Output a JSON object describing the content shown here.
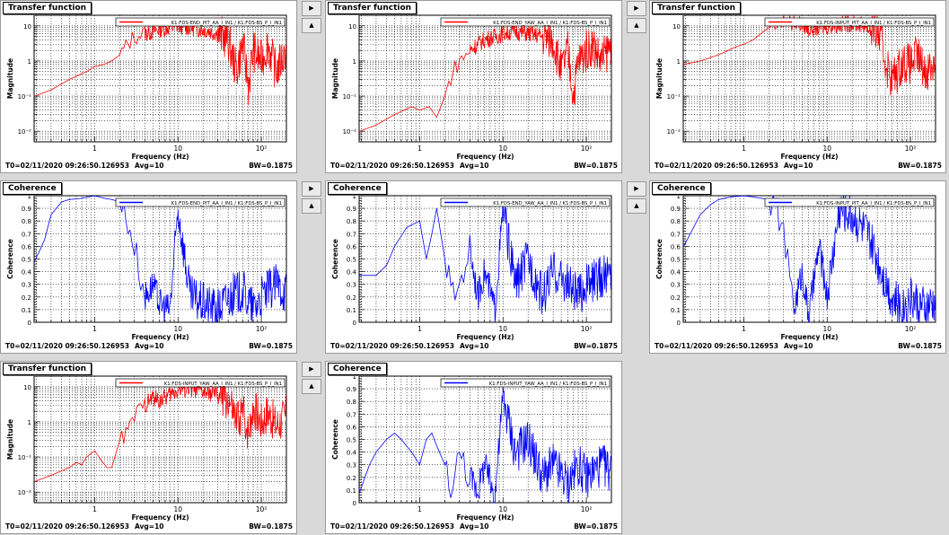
{
  "panels": [
    {
      "type": "tf",
      "title": "Transfer function",
      "legend": "K1:FDS-END_PIT_AA_I_IN1 / K1:FDS-BS_P_I_IN1",
      "color": "#ff0000",
      "ylabel": "Magnitude",
      "xlabel": "Frequency (Hz)",
      "footer": [
        "T0=02/11/2020 09:26:50.126953",
        "Avg=10",
        "BW=0.1875"
      ]
    },
    {
      "type": "tf",
      "title": "Transfer function",
      "legend": "K1:FDS-END_YAW_AA_I_IN1 / K1:FDS-BS_P_I_IN1",
      "color": "#ff0000",
      "ylabel": "Magnitude",
      "xlabel": "Frequency (Hz)",
      "footer": [
        "T0=02/11/2020 09:26:50.126953",
        "Avg=10",
        "BW=0.1875"
      ]
    },
    {
      "type": "tf",
      "title": "Transfer function",
      "legend": "K1:FDS-INPUT_PIT_AA_I_IN1 / K1:FDS-BS_P_I_IN1",
      "color": "#ff0000",
      "ylabel": "Magnitude",
      "xlabel": "Frequency (Hz)",
      "footer": [
        "T0=02/11/2020 09:26:50.126953",
        "Avg=10",
        "BW=0.1875"
      ]
    },
    {
      "type": "coh",
      "title": "Coherence",
      "legend": "K1:FDS-END_PIT_AA_I_IN1 / K1:FDS-BS_P_I_IN1",
      "color": "#0000ff",
      "ylabel": "Coherence",
      "xlabel": "Frequency (Hz)",
      "footer": [
        "T0=02/11/2020 09:26:50.126953",
        "Avg=10",
        "BW=0.1875"
      ]
    },
    {
      "type": "coh",
      "title": "Coherence",
      "legend": "K1:FDS-END_YAW_AA_I_IN1 / K1:FDS-BS_P_I_IN1",
      "color": "#0000ff",
      "ylabel": "Coherence",
      "xlabel": "Frequency (Hz)",
      "footer": [
        "T0=02/11/2020 09:26:50.126953",
        "Avg=10",
        "BW=0.1875"
      ]
    },
    {
      "type": "coh",
      "title": "Coherence",
      "legend": "K1:FDS-INPUT_PIT_AA_I_IN1 / K1:FDS-BS_P_I_IN1",
      "color": "#0000ff",
      "ylabel": "Coherence",
      "xlabel": "Frequency (Hz)",
      "footer": [
        "T0=02/11/2020 09:26:50.126953",
        "Avg=10",
        "BW=0.1875"
      ]
    },
    {
      "type": "tf",
      "title": "Transfer function",
      "legend": "K1:FDS-INPUT_YAW_AA_I_IN1 / K1:FDS-BS_P_I_IN1",
      "color": "#ff0000",
      "ylabel": "Magnitude",
      "xlabel": "Frequency (Hz)",
      "footer": [
        "T0=02/11/2020 09:26:50.126953",
        "Avg=10",
        "BW=0.1875"
      ]
    },
    {
      "type": "coh",
      "title": "Coherence",
      "legend": "K1:FDS-INPUT_YAW_AA_I_IN1 / K1:FDS-BS_P_I_IN1",
      "color": "#0000ff",
      "ylabel": "Coherence",
      "xlabel": "Frequency (Hz)",
      "footer": [
        "T0=02/11/2020 09:26:50.126953",
        "Avg=10",
        "BW=0.1875"
      ]
    }
  ],
  "controls": {
    "next_icon": "play-right-icon",
    "prev_icon": "triangle-up-icon"
  },
  "chart_data": [
    {
      "type": "line",
      "title": "Transfer function",
      "xlabel": "Frequency (Hz)",
      "ylabel": "Magnitude",
      "xscale": "log",
      "yscale": "log",
      "xlim": [
        0.1875,
        200
      ],
      "ylim": [
        0.005,
        20
      ],
      "xticks": [
        "1",
        "10",
        "10²"
      ],
      "yticks": [
        "10⁻²",
        "10⁻¹",
        "1",
        "10"
      ],
      "series": [
        {
          "name": "K1:FDS-END_PIT_AA_I_IN1 / K1:FDS-BS_P_I_IN1",
          "x": [
            0.19,
            0.3,
            0.5,
            0.8,
            1.0,
            1.3,
            1.6,
            2,
            2.5,
            3,
            4,
            5,
            6,
            8,
            10,
            14,
            20,
            30,
            40,
            50,
            60,
            70,
            80,
            100,
            120,
            150,
            200
          ],
          "y": [
            0.1,
            0.15,
            0.3,
            0.5,
            0.7,
            0.8,
            1.0,
            1.5,
            3,
            5,
            6,
            7,
            8,
            9,
            10,
            9,
            8,
            6,
            4,
            0.5,
            3,
            0.2,
            2,
            1,
            3,
            0.5,
            2
          ]
        }
      ]
    },
    {
      "type": "line",
      "title": "Transfer function",
      "xlabel": "Frequency (Hz)",
      "ylabel": "Magnitude",
      "xscale": "log",
      "yscale": "log",
      "xlim": [
        0.1875,
        200
      ],
      "ylim": [
        0.005,
        20
      ],
      "xticks": [
        "1",
        "10",
        "10²"
      ],
      "yticks": [
        "10⁻²",
        "10⁻¹",
        "1",
        "10"
      ],
      "series": [
        {
          "name": "K1:FDS-END_YAW_AA_I_IN1 / K1:FDS-BS_P_I_IN1",
          "x": [
            0.19,
            0.3,
            0.5,
            0.8,
            1.0,
            1.3,
            1.6,
            2,
            2.5,
            3,
            4,
            5,
            6,
            8,
            10,
            14,
            20,
            30,
            40,
            50,
            60,
            70,
            80,
            100,
            120,
            150,
            200
          ],
          "y": [
            0.01,
            0.015,
            0.03,
            0.05,
            0.04,
            0.05,
            0.025,
            0.1,
            0.5,
            1,
            2,
            3,
            4,
            5,
            6,
            7,
            6,
            5,
            4,
            0.5,
            2,
            0.1,
            1,
            2,
            3,
            1,
            3
          ]
        }
      ]
    },
    {
      "type": "line",
      "title": "Transfer function",
      "xlabel": "Frequency (Hz)",
      "ylabel": "Magnitude",
      "xscale": "log",
      "yscale": "log",
      "xlim": [
        0.1875,
        200
      ],
      "ylim": [
        0.005,
        20
      ],
      "xticks": [
        "1",
        "10",
        "10²"
      ],
      "yticks": [
        "10⁻²",
        "10⁻¹",
        "1",
        "10"
      ],
      "series": [
        {
          "name": "K1:FDS-INPUT_PIT_AA_I_IN1 / K1:FDS-BS_P_I_IN1",
          "x": [
            0.19,
            0.3,
            0.5,
            0.8,
            1.0,
            1.3,
            1.6,
            2,
            2.5,
            3,
            4,
            5,
            6,
            8,
            10,
            14,
            20,
            30,
            40,
            50,
            60,
            70,
            80,
            100,
            120,
            150,
            200
          ],
          "y": [
            0.8,
            1.0,
            1.5,
            2.5,
            3,
            4,
            6,
            9,
            12,
            14,
            13,
            11,
            8,
            9,
            10,
            11,
            12,
            10,
            8,
            1,
            0.3,
            0.5,
            1,
            0.8,
            1.5,
            0.5,
            1
          ]
        }
      ]
    },
    {
      "type": "line",
      "title": "Coherence",
      "xlabel": "Frequency (Hz)",
      "ylabel": "Coherence",
      "xscale": "log",
      "xlim": [
        0.1875,
        200
      ],
      "ylim": [
        0,
        1
      ],
      "xticks": [
        "1",
        "10",
        "10²"
      ],
      "yticks": [
        "0",
        "0.1",
        "0.2",
        "0.3",
        "0.4",
        "0.5",
        "0.6",
        "0.7",
        "0.8",
        "0.9",
        "1"
      ],
      "series": [
        {
          "name": "K1:FDS-END_PIT_AA_I_IN1 / K1:FDS-BS_P_I_IN1",
          "x": [
            0.19,
            0.25,
            0.3,
            0.4,
            0.5,
            0.7,
            1.0,
            1.3,
            1.6,
            2,
            2.5,
            3,
            4,
            5,
            6,
            8,
            10,
            14,
            20,
            30,
            40,
            60,
            80,
            100,
            150,
            200
          ],
          "y": [
            0.48,
            0.65,
            0.85,
            0.95,
            0.97,
            0.98,
            1.0,
            0.98,
            0.97,
            0.95,
            0.8,
            0.6,
            0.2,
            0.3,
            0.15,
            0.1,
            0.9,
            0.2,
            0.15,
            0.1,
            0.2,
            0.25,
            0.1,
            0.2,
            0.3,
            0.25
          ]
        }
      ]
    },
    {
      "type": "line",
      "title": "Coherence",
      "xlabel": "Frequency (Hz)",
      "ylabel": "Coherence",
      "xscale": "log",
      "xlim": [
        0.1875,
        200
      ],
      "ylim": [
        0,
        1
      ],
      "xticks": [
        "1",
        "10",
        "10²"
      ],
      "yticks": [
        "0",
        "0.1",
        "0.2",
        "0.3",
        "0.4",
        "0.5",
        "0.6",
        "0.7",
        "0.8",
        "0.9",
        "1"
      ],
      "series": [
        {
          "name": "K1:FDS-END_YAW_AA_I_IN1 / K1:FDS-BS_P_I_IN1",
          "x": [
            0.19,
            0.25,
            0.3,
            0.4,
            0.5,
            0.7,
            1.0,
            1.2,
            1.4,
            1.6,
            2,
            2.5,
            3,
            4,
            5,
            6,
            8,
            10,
            14,
            20,
            30,
            40,
            60,
            80,
            100,
            150,
            200
          ],
          "y": [
            0.37,
            0.37,
            0.37,
            0.45,
            0.6,
            0.75,
            0.8,
            0.5,
            0.7,
            0.9,
            0.5,
            0.2,
            0.3,
            0.6,
            0.2,
            0.4,
            0.1,
            0.9,
            0.3,
            0.5,
            0.2,
            0.4,
            0.3,
            0.2,
            0.3,
            0.35,
            0.4
          ]
        }
      ]
    },
    {
      "type": "line",
      "title": "Coherence",
      "xlabel": "Frequency (Hz)",
      "ylabel": "Coherence",
      "xscale": "log",
      "xlim": [
        0.1875,
        200
      ],
      "ylim": [
        0,
        1
      ],
      "xticks": [
        "1",
        "10",
        "10²"
      ],
      "yticks": [
        "0",
        "0.1",
        "0.2",
        "0.3",
        "0.4",
        "0.5",
        "0.6",
        "0.7",
        "0.8",
        "0.9",
        "1"
      ],
      "series": [
        {
          "name": "K1:FDS-INPUT_PIT_AA_I_IN1 / K1:FDS-BS_P_I_IN1",
          "x": [
            0.19,
            0.25,
            0.3,
            0.4,
            0.5,
            0.7,
            1.0,
            1.3,
            1.6,
            2,
            2.5,
            3,
            4,
            5,
            6,
            8,
            10,
            14,
            20,
            30,
            40,
            60,
            80,
            100,
            150,
            200
          ],
          "y": [
            0.6,
            0.75,
            0.85,
            0.93,
            0.97,
            0.99,
            1.0,
            0.99,
            0.98,
            0.97,
            0.9,
            0.7,
            0.1,
            0.4,
            0.05,
            0.6,
            0.2,
            0.9,
            0.85,
            0.7,
            0.5,
            0.2,
            0.1,
            0.2,
            0.1,
            0.15
          ]
        }
      ]
    },
    {
      "type": "line",
      "title": "Transfer function",
      "xlabel": "Frequency (Hz)",
      "ylabel": "Magnitude",
      "xscale": "log",
      "yscale": "log",
      "xlim": [
        0.1875,
        200
      ],
      "ylim": [
        0.005,
        20
      ],
      "xticks": [
        "1",
        "10",
        "10²"
      ],
      "yticks": [
        "10⁻²",
        "10⁻¹",
        "1",
        "10"
      ],
      "series": [
        {
          "name": "K1:FDS-INPUT_YAW_AA_I_IN1 / K1:FDS-BS_P_I_IN1",
          "x": [
            0.19,
            0.3,
            0.5,
            0.6,
            0.7,
            0.8,
            1.0,
            1.2,
            1.4,
            1.6,
            2,
            2.5,
            3,
            4,
            5,
            6,
            8,
            10,
            14,
            20,
            30,
            40,
            50,
            60,
            70,
            80,
            100,
            120,
            150,
            200
          ],
          "y": [
            0.02,
            0.03,
            0.05,
            0.07,
            0.06,
            0.1,
            0.15,
            0.08,
            0.05,
            0.05,
            0.3,
            0.5,
            1.5,
            3,
            5,
            4,
            6,
            8,
            9,
            7,
            6,
            4,
            1,
            2,
            0.5,
            3,
            1,
            2,
            0.8,
            1.5
          ]
        }
      ]
    },
    {
      "type": "line",
      "title": "Coherence",
      "xlabel": "Frequency (Hz)",
      "ylabel": "Coherence",
      "xscale": "log",
      "xlim": [
        0.1875,
        200
      ],
      "ylim": [
        0,
        1
      ],
      "xticks": [
        "1",
        "10",
        "10²"
      ],
      "yticks": [
        "0",
        "0.1",
        "0.2",
        "0.3",
        "0.4",
        "0.5",
        "0.6",
        "0.7",
        "0.8",
        "0.9",
        "1"
      ],
      "series": [
        {
          "name": "K1:FDS-INPUT_YAW_AA_I_IN1 / K1:FDS-BS_P_I_IN1",
          "x": [
            0.19,
            0.22,
            0.25,
            0.3,
            0.4,
            0.5,
            0.6,
            0.8,
            1.0,
            1.2,
            1.4,
            1.6,
            2,
            2.5,
            3,
            4,
            5,
            6,
            8,
            10,
            14,
            20,
            30,
            40,
            60,
            80,
            100,
            150,
            200
          ],
          "y": [
            0.08,
            0.2,
            0.3,
            0.4,
            0.5,
            0.55,
            0.5,
            0.4,
            0.3,
            0.5,
            0.55,
            0.45,
            0.3,
            0.1,
            0.4,
            0.2,
            0.1,
            0.3,
            0.05,
            0.85,
            0.4,
            0.5,
            0.2,
            0.3,
            0.15,
            0.3,
            0.2,
            0.3,
            0.25
          ]
        }
      ]
    }
  ]
}
